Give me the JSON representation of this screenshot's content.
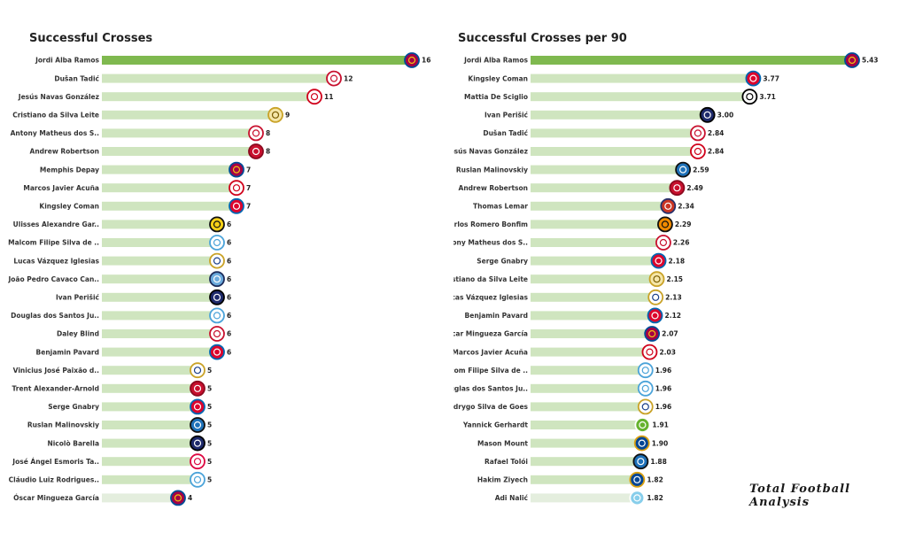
{
  "brand": "Total Football Analysis",
  "chart_data": [
    {
      "type": "bar",
      "orientation": "horizontal",
      "title": "Successful Crosses",
      "xlim": [
        0,
        16
      ],
      "bar_color_top": "#7fb94f",
      "bar_color_rest": "#cfe5bf",
      "bar_color_last": "#e4eede",
      "categories": [
        "Jordi Alba Ramos",
        "Dušan Tadić",
        "Jesús Navas González",
        "Cristiano da Silva Leite",
        "Antony Matheus dos S..",
        "Andrew Robertson",
        "Memphis Depay",
        "Marcos Javier Acuña",
        "Kingsley Coman",
        "Ulisses Alexandre Gar..",
        "Malcom Filipe Silva de ..",
        "Lucas Vázquez Iglesias",
        "João Pedro Cavaco Can..",
        "Ivan Perišić",
        "Douglas dos Santos Ju..",
        "Daley Blind",
        "Benjamin Pavard",
        "Vinicius José Paixão d..",
        "Trent Alexander-Arnold",
        "Serge  Gnabry",
        "Ruslan Malinovskiy",
        "Nicolò Barella",
        "José Ángel Esmoris Ta..",
        "Cláudio Luiz Rodrigues..",
        "Óscar Mingueza García"
      ],
      "values": [
        16,
        12,
        11,
        9,
        8,
        8,
        7,
        7,
        7,
        6,
        6,
        6,
        6,
        6,
        6,
        6,
        6,
        5,
        5,
        5,
        5,
        5,
        5,
        5,
        4
      ],
      "value_labels": [
        "16",
        "12",
        "11",
        "9",
        "8",
        "8",
        "7",
        "7",
        "7",
        "6",
        "6",
        "6",
        "6",
        "6",
        "6",
        "6",
        "6",
        "5",
        "5",
        "5",
        "5",
        "5",
        "5",
        "5",
        "4"
      ],
      "clubs": [
        "barcelona",
        "ajax",
        "sevilla",
        "sheriff",
        "ajax",
        "liverpool",
        "barcelona",
        "sevilla",
        "bayern",
        "young-boys",
        "zenit",
        "real-madrid",
        "man-city",
        "inter",
        "zenit",
        "ajax",
        "bayern",
        "real-madrid",
        "liverpool",
        "bayern",
        "atalanta",
        "inter",
        "leipzig",
        "zenit",
        "barcelona"
      ]
    },
    {
      "type": "bar",
      "orientation": "horizontal",
      "title": "Successful Crosses per 90",
      "xlim": [
        0,
        5.43
      ],
      "bar_color_top": "#7fb94f",
      "bar_color_rest": "#cfe5bf",
      "bar_color_last": "#e4eede",
      "categories": [
        "Jordi Alba Ramos",
        "Kingsley Coman",
        "Mattia De Sciglio",
        "Ivan Perišić",
        "Dušan Tadić",
        "Jesús Navas González",
        "Ruslan Malinovskiy",
        "Andrew Robertson",
        "Thomas Lemar",
        "Marlos Romero Bonfim",
        "Antony Matheus dos S..",
        "Serge  Gnabry",
        "Cristiano da Silva Leite",
        "Lucas Vázquez Iglesias",
        "Benjamin Pavard",
        "Óscar Mingueza García",
        "Marcos Javier Acuña",
        "Malcom Filipe Silva de ..",
        "Douglas dos Santos Ju..",
        "Rodrygo Silva de Goes",
        "Yannick Gerhardt",
        "Mason Mount",
        "Rafael Tolói",
        "Hakim Ziyech",
        "Adi Nalić"
      ],
      "values": [
        5.43,
        3.77,
        3.71,
        3.0,
        2.84,
        2.84,
        2.59,
        2.49,
        2.34,
        2.29,
        2.26,
        2.18,
        2.15,
        2.13,
        2.12,
        2.07,
        2.03,
        1.96,
        1.96,
        1.96,
        1.91,
        1.9,
        1.88,
        1.82,
        1.82
      ],
      "value_labels": [
        "5.43",
        "3.77",
        "3.71",
        "3.00",
        "2.84",
        "2.84",
        "2.59",
        "2.49",
        "2.34",
        "2.29",
        "2.26",
        "2.18",
        "2.15",
        "2.13",
        "2.12",
        "2.07",
        "2.03",
        "1.96",
        "1.96",
        "1.96",
        "1.91",
        "1.90",
        "1.88",
        "1.82",
        "1.82"
      ],
      "clubs": [
        "barcelona",
        "bayern",
        "juventus",
        "inter",
        "ajax",
        "sevilla",
        "atalanta",
        "liverpool",
        "atletico",
        "shakhtar",
        "ajax",
        "bayern",
        "sheriff",
        "real-madrid",
        "bayern",
        "barcelona",
        "sevilla",
        "zenit",
        "zenit",
        "real-madrid",
        "wolfsburg",
        "chelsea",
        "atalanta",
        "chelsea",
        "malmo"
      ]
    }
  ]
}
